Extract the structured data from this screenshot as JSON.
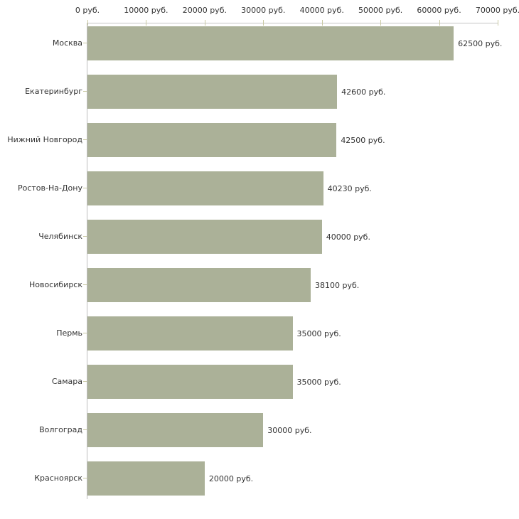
{
  "chart_data": {
    "type": "bar",
    "orientation": "horizontal",
    "title": "",
    "xlabel": "",
    "ylabel": "",
    "unit": "руб.",
    "categories": [
      "Москва",
      "Екатеринбург",
      "Нижний Новгород",
      "Ростов-На-Дону",
      "Челябинск",
      "Новосибирск",
      "Пермь",
      "Самара",
      "Волгоград",
      "Красноярск"
    ],
    "values": [
      62500,
      42600,
      42500,
      40230,
      40000,
      38100,
      35000,
      35000,
      30000,
      20000
    ],
    "value_labels": [
      "62500 руб.",
      "42600 руб.",
      "42500 руб.",
      "40230 руб.",
      "40000 руб.",
      "38100 руб.",
      "35000 руб.",
      "35000 руб.",
      "30000 руб.",
      "20000 руб."
    ],
    "x_ticks": [
      0,
      10000,
      20000,
      30000,
      40000,
      50000,
      60000,
      70000
    ],
    "x_tick_labels": [
      "0 руб.",
      "10000 руб.",
      "20000 руб.",
      "30000 руб.",
      "40000 руб.",
      "50000 руб.",
      "60000 руб.",
      "70000 руб."
    ],
    "xlim": [
      0,
      70000
    ],
    "grid": false,
    "legend": false,
    "colors": {
      "bar": "#abb198",
      "axis_line": "#c4c4c4",
      "tick_mark": "#c9c9a3",
      "text": "#333333",
      "background": "#ffffff"
    }
  }
}
